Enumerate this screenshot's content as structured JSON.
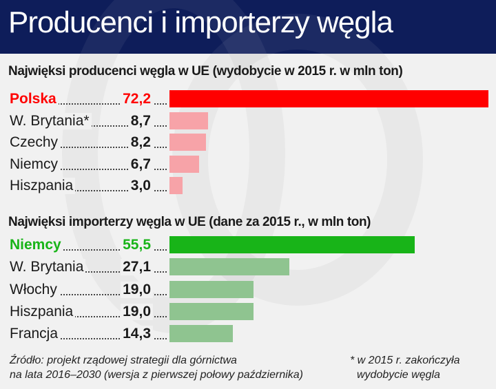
{
  "title": "Producenci i importerzy węgla",
  "colors": {
    "header": "#0e1d5a",
    "producer_highlight": "#ff0000",
    "producer": "#f7a3a8",
    "importer_highlight": "#18b418",
    "importer": "#8fc490"
  },
  "chart_data": [
    {
      "type": "bar",
      "orientation": "horizontal",
      "title": "Najwięksi producenci węgla w UE (wydobycie w 2015 r. w mln ton)",
      "categories": [
        "Polska",
        "W. Brytania*",
        "Czechy",
        "Niemcy",
        "Hiszpania"
      ],
      "values": [
        72.2,
        8.7,
        8.2,
        6.7,
        3.0
      ],
      "value_labels": [
        "72,2",
        "8,7",
        "8,2",
        "6,7",
        "3,0"
      ],
      "highlight": "Polska"
    },
    {
      "type": "bar",
      "orientation": "horizontal",
      "title": "Najwięksi importerzy węgla w UE (dane za 2015 r., w mln ton)",
      "categories": [
        "Niemcy",
        "W. Brytania",
        "Włochy",
        "Hiszpania",
        "Francja"
      ],
      "values": [
        55.5,
        27.1,
        19.0,
        19.0,
        14.3
      ],
      "value_labels": [
        "55,5",
        "27,1",
        "19,0",
        "19,0",
        "14,3"
      ],
      "highlight": "Niemcy"
    }
  ],
  "footer": {
    "source_line1": "Źródło: projekt rządowej strategii dla górnictwa",
    "source_line2": "na lata 2016–2030 (wersja z pierwszej połowy października)",
    "note_line1": "* w 2015 r. zakończyła",
    "note_line2": "wydobycie węgla"
  }
}
